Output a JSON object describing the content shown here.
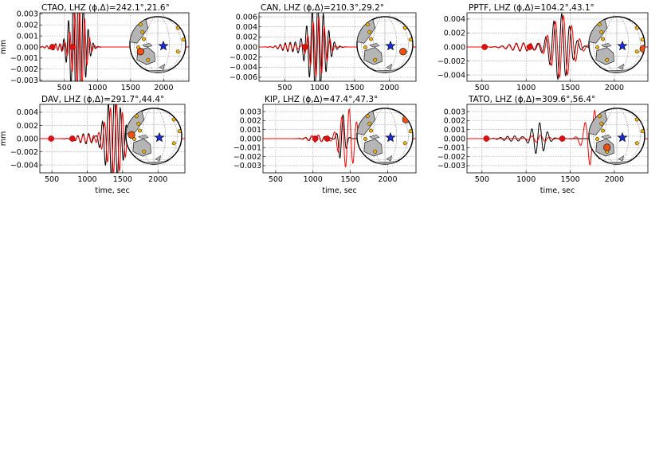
{
  "chart_data": [
    {
      "type": "line",
      "title": "CTAO, LHZ (ϕ,Δ)=242.1°,21.6°",
      "ylabel": "mm",
      "xlabel": "",
      "xlim": [
        130,
        2380
      ],
      "ylim": [
        -0.0031,
        0.0031
      ],
      "x_ticks": [
        500,
        1000,
        1500,
        2000
      ],
      "y_ticks": [
        -0.003,
        -0.002,
        -0.001,
        0.0,
        0.001,
        0.002,
        0.003
      ],
      "y_tick_labels": [
        "−0.003",
        "−0.002",
        "−0.001",
        "0.000",
        "0.001",
        "0.002",
        "0.003"
      ],
      "grid": true,
      "markers": [
        {
          "x": 320,
          "y": 0.0
        },
        {
          "x": 620,
          "y": 0.0
        }
      ],
      "series": [
        {
          "color": "#000000",
          "amp": 0.006,
          "center": 700,
          "width": 140,
          "period": 75,
          "pre_amp": 0.00035,
          "pre_center": 420,
          "pre_width": 180
        },
        {
          "color": "#ff0000",
          "amp": 0.004,
          "center": 720,
          "width": 130,
          "period": 75,
          "pre_amp": 0.00025,
          "pre_center": 420,
          "pre_width": 180
        }
      ],
      "globe": {
        "station": "gold",
        "highlight": "orange",
        "star": "#1a2bd8"
      }
    },
    {
      "type": "line",
      "title": "CAN, LHZ (ϕ,Δ)=210.3°,29.2°",
      "ylabel": "",
      "xlabel": "",
      "xlim": [
        130,
        2380
      ],
      "ylim": [
        -0.0068,
        0.0068
      ],
      "x_ticks": [
        500,
        1000,
        1500,
        2000
      ],
      "y_ticks": [
        -0.006,
        -0.004,
        -0.002,
        0.0,
        0.002,
        0.004,
        0.006
      ],
      "y_tick_labels": [
        "−0.006",
        "−0.004",
        "−0.002",
        "0.000",
        "0.002",
        "0.004",
        "0.006"
      ],
      "grid": true,
      "markers": [
        {
          "x": 790,
          "y": 0.0
        }
      ],
      "series": [
        {
          "color": "#000000",
          "amp": 0.009,
          "center": 960,
          "width": 170,
          "period": 80,
          "pre_amp": 0.0009,
          "pre_center": 560,
          "pre_width": 170
        },
        {
          "color": "#ff0000",
          "amp": 0.006,
          "center": 975,
          "width": 150,
          "period": 80,
          "pre_amp": 0.0006,
          "pre_center": 560,
          "pre_width": 170
        }
      ],
      "globe": {
        "station": "gold",
        "highlight": "orange",
        "star": "#1a2bd8"
      }
    },
    {
      "type": "line",
      "title": "PPTF, LHZ (ϕ,Δ)=104.2°,43.1°",
      "ylabel": "",
      "xlabel": "",
      "xlim": [
        330,
        2380
      ],
      "ylim": [
        -0.0049,
        0.0049
      ],
      "x_ticks": [
        500,
        1000,
        1500,
        2000
      ],
      "y_ticks": [
        -0.004,
        -0.002,
        0.0,
        0.002,
        0.004
      ],
      "y_tick_labels": [
        "−0.004",
        "−0.002",
        "0.000",
        "0.002",
        "0.004"
      ],
      "grid": true,
      "markers": [
        {
          "x": 530,
          "y": 0.0
        },
        {
          "x": 1040,
          "y": 0.0
        }
      ],
      "series": [
        {
          "color": "#000000",
          "amp": 0.0048,
          "center": 1390,
          "width": 150,
          "period": 90,
          "pre_amp": 0.0006,
          "pre_center": 950,
          "pre_width": 200
        },
        {
          "color": "#ff0000",
          "amp": 0.0045,
          "center": 1410,
          "width": 170,
          "period": 92,
          "pre_amp": 0.0005,
          "pre_center": 950,
          "pre_width": 200
        }
      ],
      "globe": {
        "station": "gold",
        "highlight": "orange",
        "star": "#1a2bd8"
      }
    },
    {
      "type": "line",
      "title": "DAV, LHZ (ϕ,Δ)=291.7°,44.4°",
      "ylabel": "mm",
      "xlabel": "time, sec",
      "xlim": [
        330,
        2380
      ],
      "ylim": [
        -0.0052,
        0.0052
      ],
      "x_ticks": [
        500,
        1000,
        1500,
        2000
      ],
      "y_ticks": [
        -0.004,
        -0.002,
        0.0,
        0.002,
        0.004
      ],
      "y_tick_labels": [
        "−0.004",
        "−0.002",
        "0.000",
        "0.002",
        "0.004"
      ],
      "grid": true,
      "markers": [
        {
          "x": 490,
          "y": 0.0
        },
        {
          "x": 790,
          "y": 0.0
        }
      ],
      "series": [
        {
          "color": "#000000",
          "amp": 0.0065,
          "center": 1370,
          "width": 170,
          "period": 85,
          "pre_amp": 0.0008,
          "pre_center": 1000,
          "pre_width": 180
        },
        {
          "color": "#ff0000",
          "amp": 0.0055,
          "center": 1400,
          "width": 170,
          "period": 85,
          "pre_amp": 0.0006,
          "pre_center": 1000,
          "pre_width": 180
        }
      ],
      "globe": {
        "station": "gold",
        "highlight": "orange",
        "star": "#1a2bd8"
      }
    },
    {
      "type": "line",
      "title": "KIP, LHZ (ϕ,Δ)=47.4°,47.3°",
      "ylabel": "",
      "xlabel": "time, sec",
      "xlim": [
        330,
        2380
      ],
      "ylim": [
        -0.0038,
        0.0038
      ],
      "x_ticks": [
        500,
        1000,
        1500,
        2000
      ],
      "y_ticks": [
        -0.003,
        -0.002,
        -0.001,
        0.0,
        0.001,
        0.002,
        0.003
      ],
      "y_tick_labels": [
        "−0.003",
        "−0.002",
        "−0.001",
        "0.000",
        "0.001",
        "0.002",
        "0.003"
      ],
      "grid": true,
      "markers": [
        {
          "x": 1030,
          "y": 0.0
        },
        {
          "x": 1190,
          "y": 0.0
        }
      ],
      "series": [
        {
          "color": "#000000",
          "amp": 0.0028,
          "center": 1390,
          "width": 60,
          "period": 95,
          "pre_amp": 0.0004,
          "pre_center": 1050,
          "pre_width": 140
        },
        {
          "color": "#ff0000",
          "amp": 0.0033,
          "center": 1470,
          "width": 150,
          "period": 100,
          "pre_amp": 0.0004,
          "pre_center": 1050,
          "pre_width": 140
        }
      ],
      "globe": {
        "station": "gold",
        "highlight": "orange",
        "star": "#1a2bd8"
      }
    },
    {
      "type": "line",
      "title": "TATO, LHZ (ϕ,Δ)=309.6°,56.4°",
      "ylabel": "",
      "xlabel": "time, sec",
      "xlim": [
        330,
        2380
      ],
      "ylim": [
        -0.0038,
        0.0038
      ],
      "x_ticks": [
        500,
        1000,
        1500,
        2000
      ],
      "y_ticks": [
        -0.003,
        -0.002,
        -0.001,
        0.0,
        0.001,
        0.002,
        0.003
      ],
      "y_tick_labels": [
        "−0.003",
        "−0.002",
        "−0.001",
        "0.000",
        "0.001",
        "0.002",
        "0.003"
      ],
      "grid": true,
      "markers": [
        {
          "x": 550,
          "y": 0.0
        },
        {
          "x": 1410,
          "y": 0.0
        }
      ],
      "series": [
        {
          "color": "#000000",
          "amp": 0.0018,
          "center": 1140,
          "width": 110,
          "period": 90,
          "pre_amp": 0.0003,
          "pre_center": 850,
          "pre_width": 160
        },
        {
          "color": "#ff0000",
          "amp": 0.0032,
          "center": 1760,
          "width": 120,
          "period": 110,
          "pre_amp": 0.0004,
          "pre_center": 1140,
          "pre_width": 130
        }
      ],
      "globe": {
        "station": "gold",
        "highlight": "orange",
        "star": "#1a2bd8"
      }
    }
  ]
}
